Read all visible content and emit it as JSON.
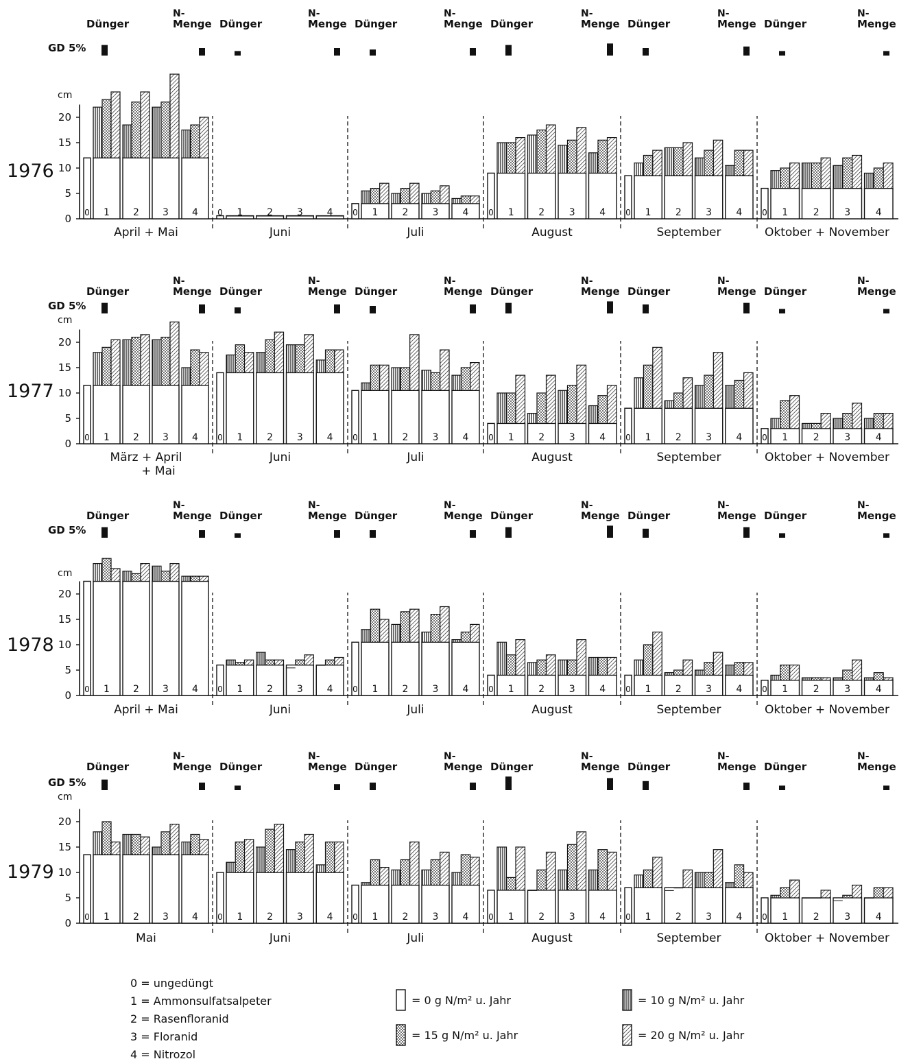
{
  "chart_data": {
    "type": "bar",
    "unit_label": "cm",
    "gd_label": "GD 5%",
    "fertilizer_header": "Dünger",
    "nmenge_header_line1": "N-",
    "nmenge_header_line2": "Menge",
    "yticks": [
      0,
      5,
      10,
      15,
      20
    ],
    "ylim": [
      0,
      24
    ],
    "group_labels": [
      "0",
      "1",
      "2",
      "3",
      "4"
    ],
    "legend": {
      "fertilizers": [
        "0 = ungedüngt",
        "1 = Ammonsulfatsalpeter",
        "2 = Rasenfloranid",
        "3 = Floranid",
        "4 = Nitrozol"
      ],
      "rates": [
        {
          "label": "=   0 g  N/m² u. Jahr",
          "pattern": "plain"
        },
        {
          "label": "= 10 g  N/m² u. Jahr",
          "pattern": "vertical"
        },
        {
          "label": "= 15 g  N/m²  u. Jahr",
          "pattern": "dotted"
        },
        {
          "label": "= 20 g  N/m²  u. Jahr",
          "pattern": "diagonal"
        }
      ]
    },
    "panels": [
      {
        "year": "1976",
        "periods": [
          {
            "label": "April + Mai",
            "gd": [
              3.5,
              2.5
            ],
            "control": 12,
            "groups": [
              [
                22,
                23.5,
                25
              ],
              [
                18.5,
                23,
                25
              ],
              [
                22,
                23,
                28.5
              ],
              [
                17.5,
                18.5,
                20
              ]
            ]
          },
          {
            "label": "Juni",
            "gd": [
              1.5,
              2.5
            ],
            "control": 0.6,
            "groups": [
              [
                0.6,
                0.6,
                0.6
              ],
              [
                0.6,
                0.6,
                0.6
              ],
              [
                0.6,
                0.6,
                0.6
              ],
              [
                0.6,
                0.6,
                0.6
              ]
            ]
          },
          {
            "label": "Juli",
            "gd": [
              2,
              2.5
            ],
            "control": 3,
            "groups": [
              [
                5.5,
                6,
                7
              ],
              [
                5,
                6,
                7
              ],
              [
                5,
                5.5,
                6.5
              ],
              [
                4,
                4.5,
                4.5
              ]
            ]
          },
          {
            "label": "August",
            "gd": [
              3.5,
              4
            ],
            "control": 9,
            "groups": [
              [
                15,
                15,
                16
              ],
              [
                16.5,
                17.5,
                18.5
              ],
              [
                14.5,
                15.5,
                18
              ],
              [
                13,
                15.5,
                16
              ]
            ]
          },
          {
            "label": "September",
            "gd": [
              2.5,
              3
            ],
            "control": 8.5,
            "groups": [
              [
                11,
                12.5,
                13.5
              ],
              [
                14,
                14,
                15
              ],
              [
                12,
                13.5,
                15.5
              ],
              [
                10.5,
                13.5,
                13.5
              ]
            ]
          },
          {
            "label": "Oktober + November",
            "gd": [
              1.5,
              1.5
            ],
            "control": 6,
            "groups": [
              [
                9.5,
                10,
                11
              ],
              [
                11,
                11,
                12
              ],
              [
                10.5,
                12,
                12.5
              ],
              [
                9,
                10,
                11
              ]
            ]
          }
        ]
      },
      {
        "year": "1977",
        "periods": [
          {
            "label": "März + April",
            "label2": "+ Mai",
            "gd": [
              3.5,
              3
            ],
            "control": 11.5,
            "groups": [
              [
                18,
                19,
                20.5
              ],
              [
                20.5,
                21,
                21.5
              ],
              [
                20.5,
                21,
                24
              ],
              [
                15,
                18.5,
                18
              ]
            ]
          },
          {
            "label": "Juni",
            "gd": [
              2,
              3
            ],
            "control": 14,
            "groups": [
              [
                17.5,
                19.5,
                18
              ],
              [
                18,
                20.5,
                22
              ],
              [
                19.5,
                19.5,
                21.5
              ],
              [
                16.5,
                18.5,
                18.5
              ]
            ]
          },
          {
            "label": "Juli",
            "gd": [
              2.5,
              3
            ],
            "control": 10.5,
            "groups": [
              [
                12,
                15.5,
                15.5
              ],
              [
                15,
                15,
                21.5
              ],
              [
                14.5,
                14,
                18.5
              ],
              [
                13.5,
                15,
                16
              ]
            ]
          },
          {
            "label": "August",
            "gd": [
              3.5,
              4
            ],
            "control": 4,
            "groups": [
              [
                10,
                10,
                13.5
              ],
              [
                6,
                10,
                13.5
              ],
              [
                10.5,
                11.5,
                15.5
              ],
              [
                7.5,
                9.5,
                11.5
              ]
            ]
          },
          {
            "label": "September",
            "gd": [
              3,
              3.5
            ],
            "control": 7,
            "groups": [
              [
                13,
                15.5,
                19
              ],
              [
                8.5,
                10,
                13
              ],
              [
                11.5,
                13.5,
                18
              ],
              [
                11.5,
                12.5,
                14
              ]
            ]
          },
          {
            "label": "Oktober + November",
            "gd": [
              1.5,
              1.5
            ],
            "control": 3,
            "groups": [
              [
                5,
                8.5,
                9.5
              ],
              [
                4,
                4,
                6
              ],
              [
                5,
                6,
                8
              ],
              [
                5,
                6,
                6
              ]
            ]
          }
        ]
      },
      {
        "year": "1978",
        "periods": [
          {
            "label": "April + Mai",
            "gd": [
              3.5,
              2.5
            ],
            "control": 22.5,
            "groups": [
              [
                26,
                27,
                25
              ],
              [
                24.5,
                24,
                26
              ],
              [
                25.5,
                24.5,
                26
              ],
              [
                23.5,
                23.5,
                23.5
              ]
            ]
          },
          {
            "label": "Juni",
            "gd": [
              1.5,
              2.5
            ],
            "control": 6,
            "groups": [
              [
                7,
                6.5,
                7
              ],
              [
                8.5,
                7,
                7
              ],
              [
                5.5,
                7,
                8
              ],
              [
                6,
                7,
                7.5
              ]
            ]
          },
          {
            "label": "Juli",
            "gd": [
              2.5,
              2.5
            ],
            "control": 10.5,
            "groups": [
              [
                13,
                17,
                15
              ],
              [
                14,
                16.5,
                17
              ],
              [
                12.5,
                16,
                17.5
              ],
              [
                11,
                12.5,
                14
              ]
            ]
          },
          {
            "label": "August",
            "gd": [
              3.5,
              4
            ],
            "control": 4,
            "groups": [
              [
                10.5,
                8,
                11
              ],
              [
                6.5,
                7,
                8
              ],
              [
                7,
                7,
                11
              ],
              [
                7.5,
                7.5,
                7.5
              ]
            ]
          },
          {
            "label": "September",
            "gd": [
              3,
              3.5
            ],
            "control": 4,
            "groups": [
              [
                7,
                10,
                12.5
              ],
              [
                4.5,
                5,
                7
              ],
              [
                5,
                6.5,
                8.5
              ],
              [
                6,
                6.5,
                6.5
              ]
            ]
          },
          {
            "label": "Oktober + November",
            "gd": [
              1.5,
              1.5
            ],
            "control": 3,
            "groups": [
              [
                4,
                6,
                6
              ],
              [
                3.5,
                3.5,
                3.5
              ],
              [
                3.5,
                5,
                7
              ],
              [
                3.5,
                4.5,
                3.5
              ]
            ]
          }
        ]
      },
      {
        "year": "1979",
        "periods": [
          {
            "label": "Mai",
            "gd": [
              3.5,
              2.5
            ],
            "control": 13.5,
            "groups": [
              [
                18,
                20,
                16
              ],
              [
                17.5,
                17.5,
                17
              ],
              [
                15,
                18,
                19.5
              ],
              [
                16,
                17.5,
                16.5
              ]
            ]
          },
          {
            "label": "Juni",
            "gd": [
              1.5,
              2
            ],
            "control": 10,
            "groups": [
              [
                12,
                16,
                16.5
              ],
              [
                15,
                18.5,
                19.5
              ],
              [
                14.5,
                16,
                17.5
              ],
              [
                11.5,
                16,
                16
              ]
            ]
          },
          {
            "label": "Juli",
            "gd": [
              2.5,
              2.5
            ],
            "control": 7.5,
            "groups": [
              [
                8,
                12.5,
                11
              ],
              [
                10.5,
                12.5,
                16
              ],
              [
                10.5,
                12.5,
                14
              ],
              [
                10,
                13.5,
                13
              ]
            ]
          },
          {
            "label": "August",
            "gd": [
              4.5,
              4
            ],
            "control": 6.5,
            "groups": [
              [
                15,
                9,
                15
              ],
              [
                6.5,
                10.5,
                14
              ],
              [
                10.5,
                15.5,
                18
              ],
              [
                10.5,
                14.5,
                14
              ]
            ]
          },
          {
            "label": "September",
            "gd": [
              3,
              2.5
            ],
            "control": 7,
            "groups": [
              [
                9.5,
                10.5,
                13
              ],
              [
                6.5,
                7,
                10.5
              ],
              [
                10,
                10,
                14.5
              ],
              [
                8,
                11.5,
                10
              ]
            ]
          },
          {
            "label": "Oktober + November",
            "gd": [
              1.5,
              1.5
            ],
            "control": 5,
            "groups": [
              [
                5.5,
                7,
                8.5
              ],
              [
                5,
                5,
                6.5
              ],
              [
                4.5,
                5.5,
                7.5
              ],
              [
                5,
                7,
                7
              ]
            ]
          }
        ]
      }
    ]
  }
}
